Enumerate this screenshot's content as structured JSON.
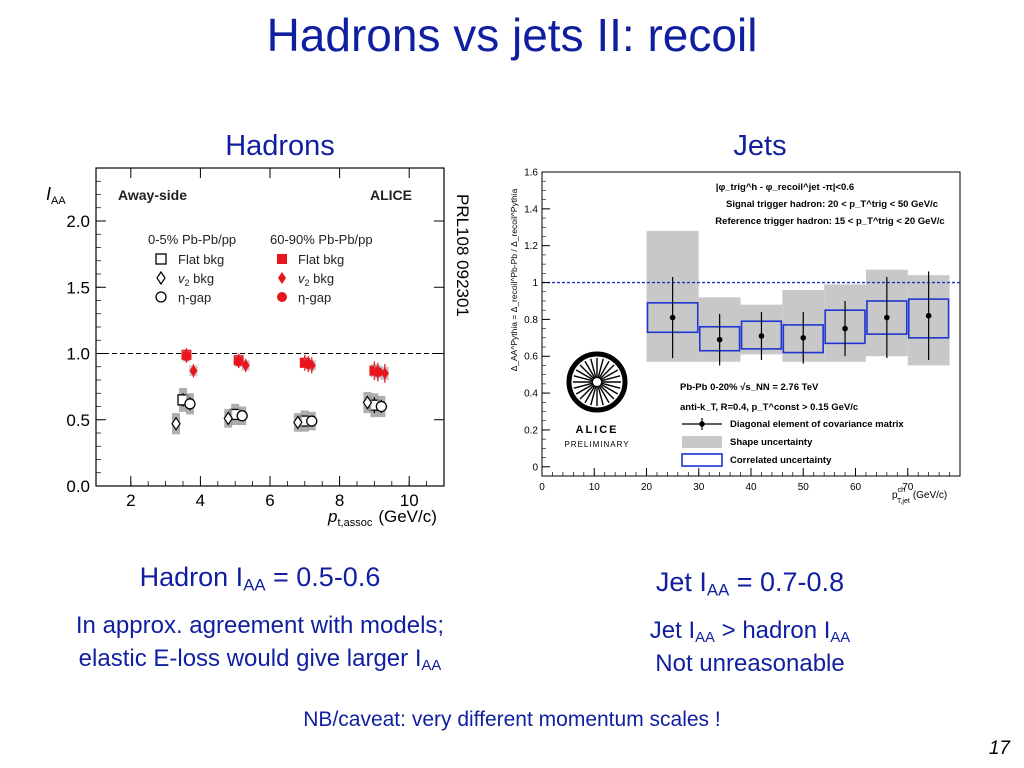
{
  "slide": {
    "title": "Hadrons vs jets II: recoil",
    "col_hadrons": "Hadrons",
    "col_jets": "Jets",
    "reference": "PRL108 092301",
    "hadron_iaa": {
      "pre": "Hadron I",
      "sub": "AA",
      "post": " = 0.5-0.6"
    },
    "hadron_note_1": "In approx. agreement with models;",
    "hadron_note_2": {
      "pre": "elastic E-loss would give larger I",
      "sub": "AA"
    },
    "jet_iaa": {
      "pre": "Jet I",
      "sub": "AA",
      "post": " = 0.7-0.8"
    },
    "jet_note_1": {
      "pre": "Jet I",
      "sub1": "AA",
      "mid": " > hadron I",
      "sub2": "AA"
    },
    "jet_note_2": "Not unreasonable",
    "caveat": "NB/caveat: very different momentum scales !",
    "page_number": "17"
  },
  "colors": {
    "title_blue": "#0f1fa0",
    "central_black": "#000000",
    "peripheral_red": "#e8141e",
    "syst_gray": "#9a9a9a",
    "shape_gray": "#c8c8c8",
    "correlated_blue": "#1f34d0",
    "unity_line_blue": "#1a2fc8"
  },
  "chart_data": [
    {
      "type": "scatter",
      "xlabel_pre": "p",
      "xlabel_sub": "t,assoc",
      "xlabel_post": "(GeV/c)",
      "ylabel_pre": "I",
      "ylabel_sub": "AA",
      "xlim": [
        1,
        11
      ],
      "ylim": [
        0,
        2.4
      ],
      "xticks": [
        "2",
        "4",
        "6",
        "8",
        "10"
      ],
      "yticks": [
        "0.0",
        "0.5",
        "1.0",
        "1.5",
        "2.0"
      ],
      "reference_line": 1.0,
      "label_left": "Away-side",
      "label_right": "ALICE",
      "legend_head_central": "0-5% Pb-Pb/pp",
      "legend_head_peripheral": "60-90% Pb-Pb/pp",
      "legend_items": [
        "Flat bkg",
        "v2 bkg",
        "η-gap"
      ],
      "legend_v2_pre": "v",
      "legend_v2_sub": "2",
      "legend_v2_post": " bkg",
      "series": [
        {
          "name": "0-5% Flat bkg",
          "marker": "open-square",
          "x": [
            3.5,
            5.0,
            7.0,
            9.0
          ],
          "y": [
            0.65,
            0.54,
            0.49,
            0.61
          ],
          "err": [
            0.05,
            0.04,
            0.04,
            0.06
          ],
          "syst": [
            0.09,
            0.08,
            0.08,
            0.09
          ]
        },
        {
          "name": "0-5% v2 bkg",
          "marker": "open-diamond",
          "x": [
            3.3,
            4.8,
            6.8,
            8.8
          ],
          "y": [
            0.47,
            0.51,
            0.48,
            0.63
          ],
          "err": [
            0.04,
            0.04,
            0.04,
            0.05
          ],
          "syst": [
            0.08,
            0.07,
            0.07,
            0.08
          ]
        },
        {
          "name": "0-5% η-gap",
          "marker": "open-circle",
          "x": [
            3.7,
            5.2,
            7.2,
            9.2
          ],
          "y": [
            0.62,
            0.53,
            0.49,
            0.6
          ],
          "err": [
            0.05,
            0.04,
            0.04,
            0.05
          ],
          "syst": [
            0.08,
            0.07,
            0.07,
            0.08
          ]
        },
        {
          "name": "60-90% Flat bkg",
          "marker": "filled-square",
          "x": [
            3.6,
            5.1,
            7.0,
            9.0
          ],
          "y": [
            0.99,
            0.95,
            0.93,
            0.87
          ],
          "err": [
            0.05,
            0.05,
            0.06,
            0.07
          ],
          "syst": [
            0.04,
            0.04,
            0.04,
            0.05
          ]
        },
        {
          "name": "60-90% v2 bkg",
          "marker": "filled-diamond",
          "x": [
            3.8,
            5.3,
            7.2,
            9.3
          ],
          "y": [
            0.87,
            0.91,
            0.91,
            0.85
          ],
          "err": [
            0.05,
            0.05,
            0.06,
            0.07
          ],
          "syst": [
            0.04,
            0.04,
            0.04,
            0.05
          ]
        },
        {
          "name": "60-90% η-gap",
          "marker": "filled-circle",
          "x": [
            3.6,
            5.1,
            7.1,
            9.1
          ],
          "y": [
            0.98,
            0.94,
            0.92,
            0.86
          ],
          "err": [
            0.05,
            0.05,
            0.06,
            0.07
          ],
          "syst": [
            0.04,
            0.04,
            0.04,
            0.05
          ]
        }
      ]
    },
    {
      "type": "scatter",
      "xlabel_pre": "p",
      "xlabel_sup": "ch",
      "xlabel_sub": "T,jet",
      "xlabel_post": "(GeV/c)",
      "ylabel": "Δ_AA^Pythia = Δ_recoil^Pb-Pb / Δ_recoil^Pythia",
      "xlim": [
        0,
        80
      ],
      "ylim": [
        -0.05,
        1.6
      ],
      "xticks": [
        "0",
        "10",
        "20",
        "30",
        "40",
        "50",
        "60",
        "70"
      ],
      "yticks": [
        "0",
        "0.2",
        "0.4",
        "0.6",
        "0.8",
        "1",
        "1.2",
        "1.4",
        "1.6"
      ],
      "reference_line": 1.0,
      "header_1": "|φ_trig^h - φ_recoil^jet -π|<0.6",
      "header_2": "Signal trigger hadron: 20 < p_T^trig < 50 GeV/c",
      "header_3": "Reference trigger hadron: 15 < p_T^trig < 20 GeV/c",
      "info_1": "Pb-Pb 0-20% √s_NN = 2.76 TeV",
      "info_2": "anti-k_T, R=0.4, p_T^const > 0.15 GeV/c",
      "legend_points": "Diagonal element of covariance matrix",
      "legend_shape": "Shape uncertainty",
      "legend_correlated": "Correlated uncertainty",
      "logo_text": "ALICE",
      "logo_sub": "PRELIMINARY",
      "bins": [
        {
          "x_low": 20,
          "x_high": 30,
          "y": 0.81,
          "err": 0.22,
          "shape_low": 0.57,
          "shape_high": 1.28,
          "corr_low": 0.73,
          "corr_high": 0.89
        },
        {
          "x_low": 30,
          "x_high": 38,
          "y": 0.69,
          "err": 0.14,
          "shape_low": 0.57,
          "shape_high": 0.92,
          "corr_low": 0.63,
          "corr_high": 0.76
        },
        {
          "x_low": 38,
          "x_high": 46,
          "y": 0.71,
          "err": 0.13,
          "shape_low": 0.61,
          "shape_high": 0.88,
          "corr_low": 0.64,
          "corr_high": 0.79
        },
        {
          "x_low": 46,
          "x_high": 54,
          "y": 0.7,
          "err": 0.14,
          "shape_low": 0.57,
          "shape_high": 0.96,
          "corr_low": 0.62,
          "corr_high": 0.77
        },
        {
          "x_low": 54,
          "x_high": 62,
          "y": 0.75,
          "err": 0.15,
          "shape_low": 0.57,
          "shape_high": 0.99,
          "corr_low": 0.67,
          "corr_high": 0.85
        },
        {
          "x_low": 62,
          "x_high": 70,
          "y": 0.81,
          "err": 0.22,
          "shape_low": 0.6,
          "shape_high": 1.07,
          "corr_low": 0.72,
          "corr_high": 0.9
        },
        {
          "x_low": 70,
          "x_high": 78,
          "y": 0.82,
          "err": 0.24,
          "shape_low": 0.55,
          "shape_high": 1.04,
          "corr_low": 0.7,
          "corr_high": 0.91
        }
      ]
    }
  ]
}
